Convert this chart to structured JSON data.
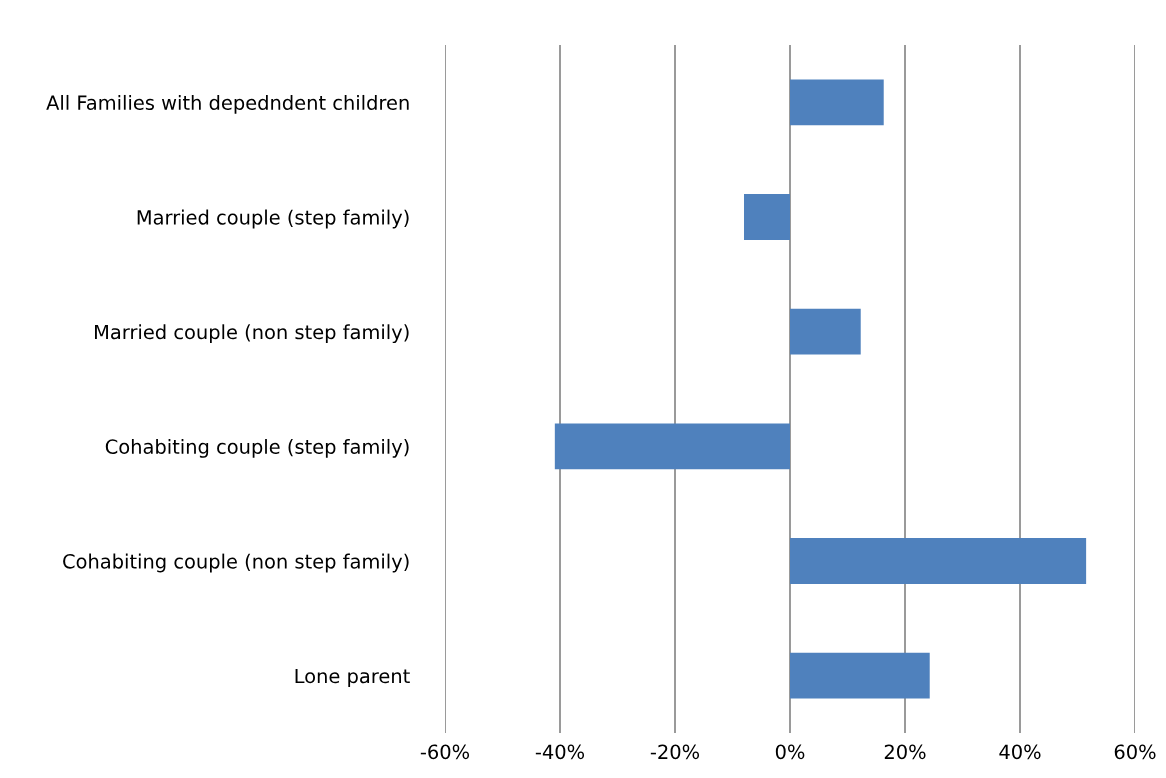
{
  "chart_data": {
    "type": "bar",
    "orientation": "horizontal",
    "categories": [
      "All Families with depedndent children",
      "Married couple (step family)",
      "Married couple (non step family)",
      "Cohabiting couple (step family)",
      "Cohabiting couple (non step family)",
      "Lone parent"
    ],
    "values": [
      16.3,
      -8.0,
      12.3,
      -40.9,
      51.5,
      24.3
    ],
    "color": "#4f81bd",
    "xlim": [
      -60,
      60
    ],
    "xticks": [
      {
        "value": -60,
        "label": "-60%"
      },
      {
        "value": -40,
        "label": "-40%"
      },
      {
        "value": -20,
        "label": "-20%"
      },
      {
        "value": 0,
        "label": "0%"
      },
      {
        "value": 20,
        "label": "20%"
      },
      {
        "value": 40,
        "label": "40%"
      },
      {
        "value": 60,
        "label": "60%"
      }
    ],
    "grid": "x",
    "legend": false
  }
}
